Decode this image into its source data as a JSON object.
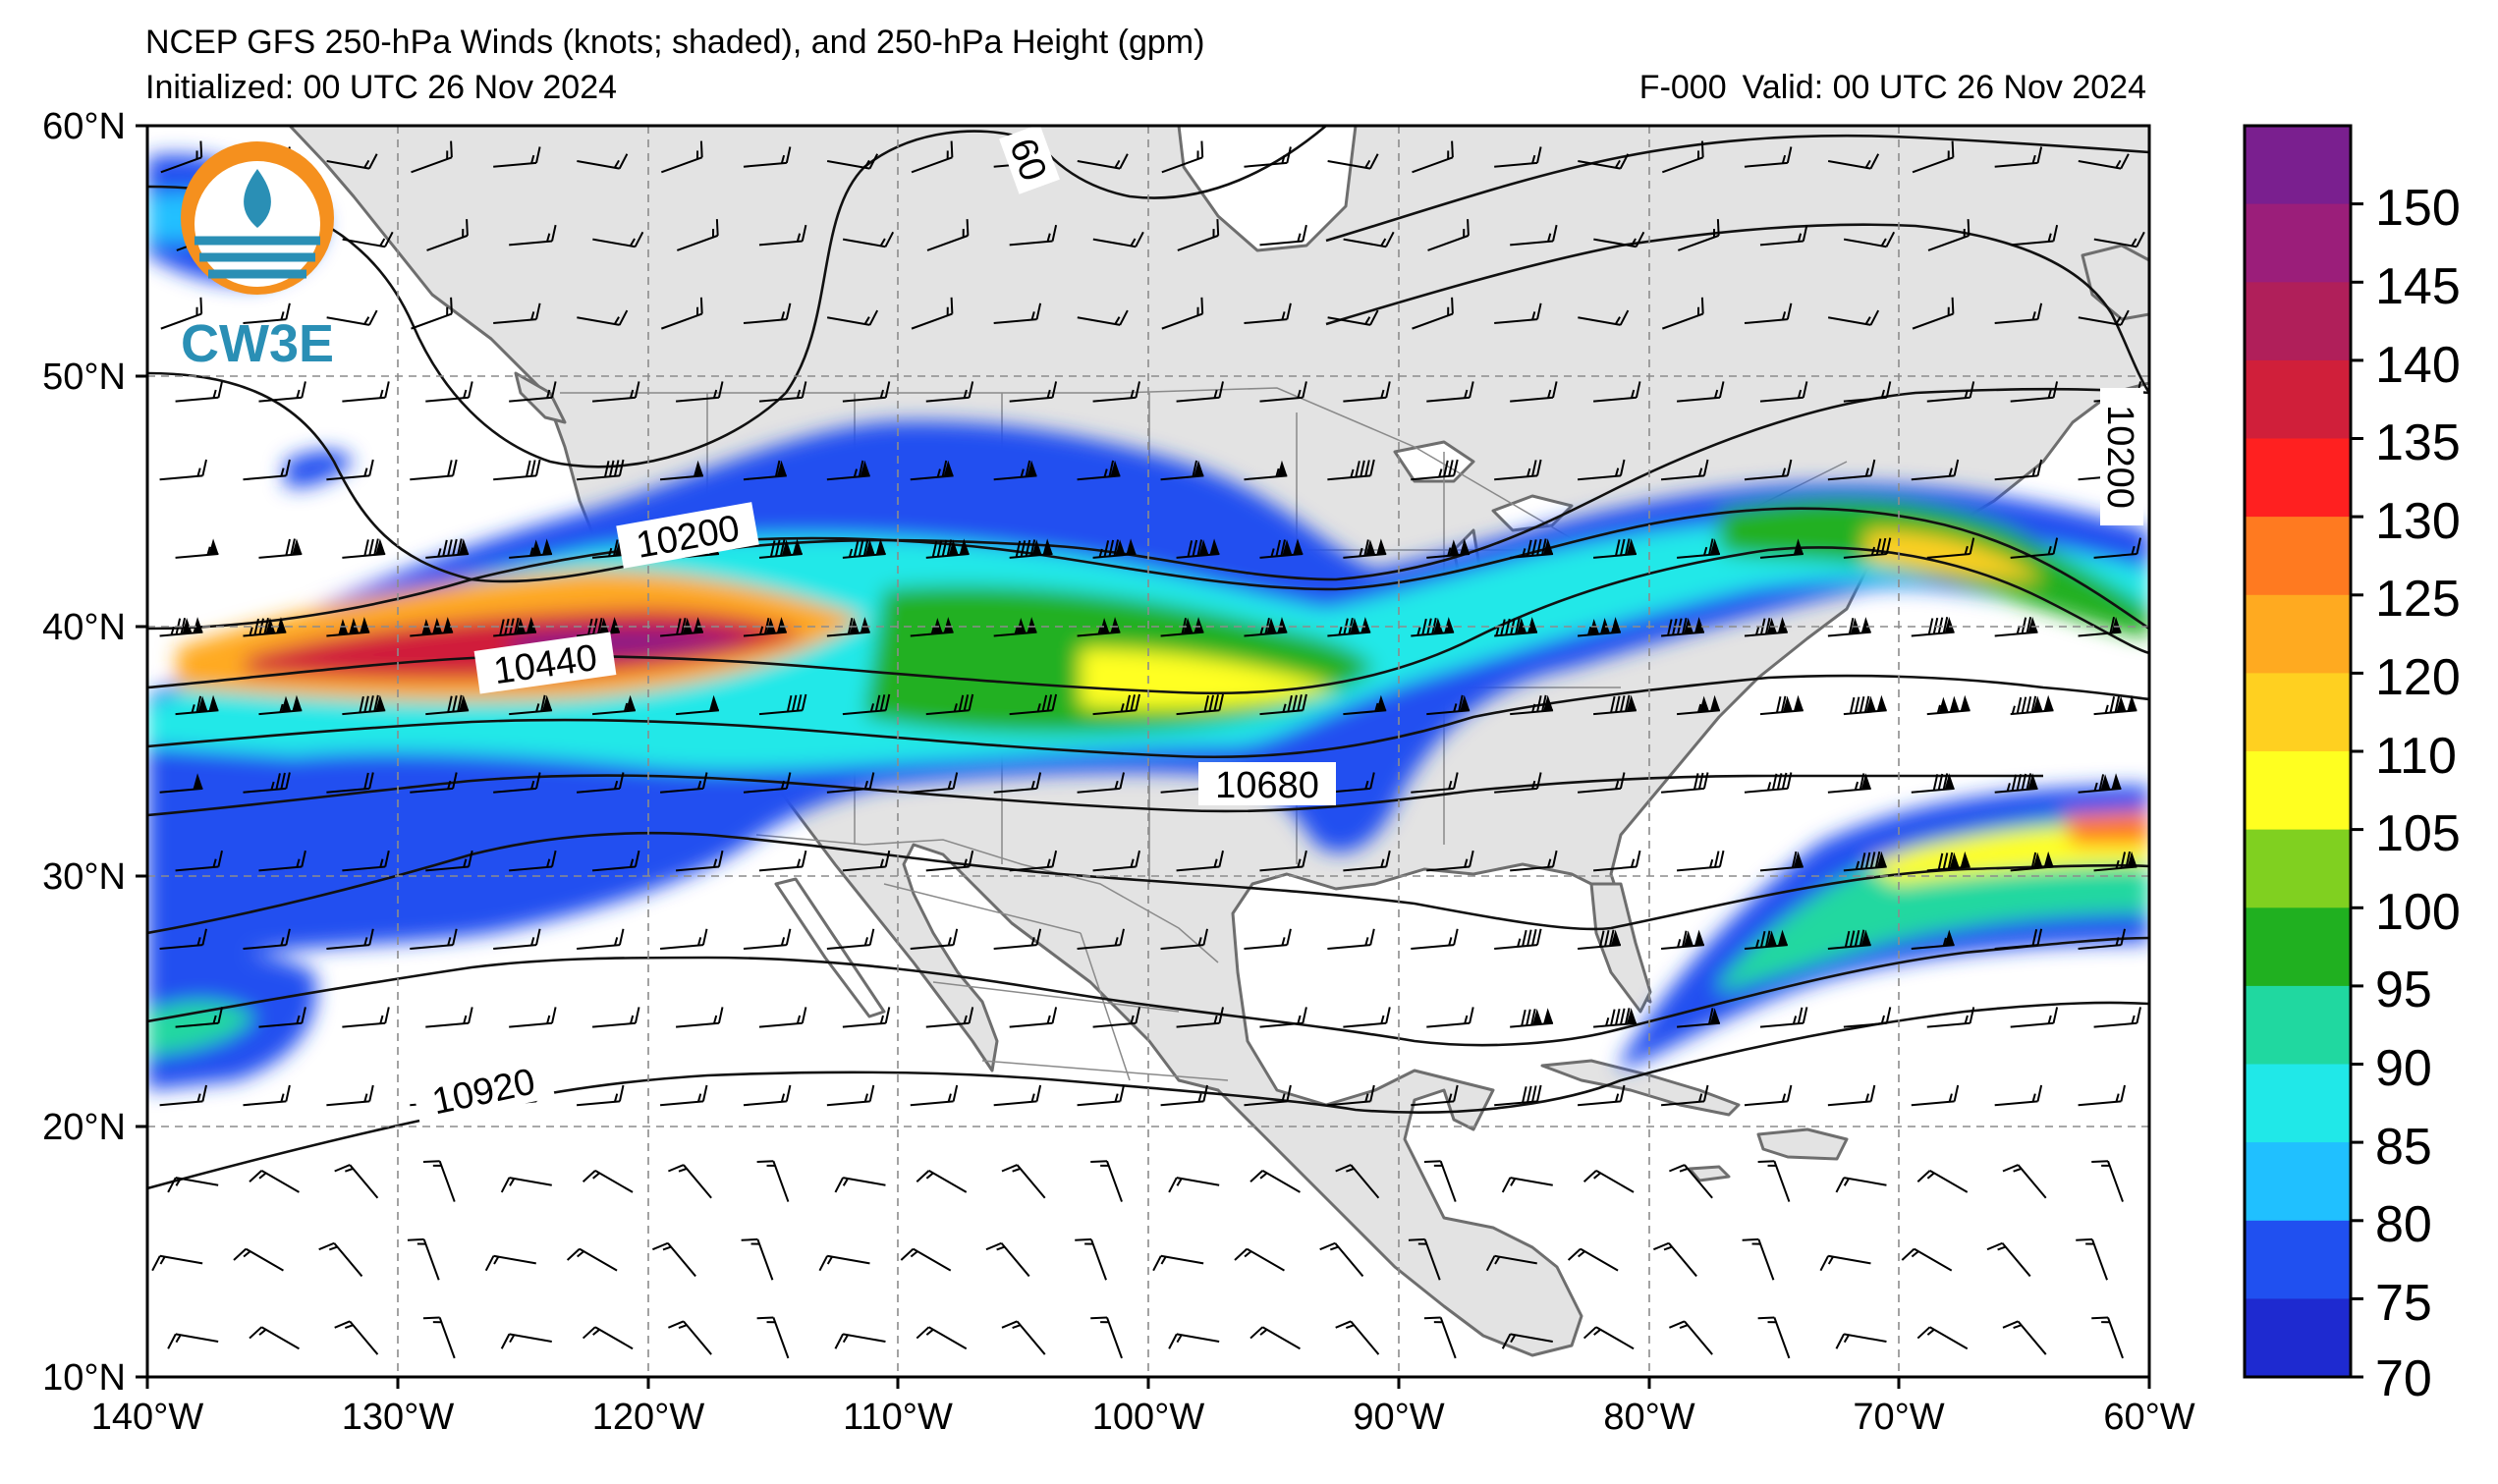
{
  "header": {
    "title": "NCEP GFS 250-hPa Winds (knots; shaded), and 250-hPa Height (gpm)",
    "initialized": "Initialized: 00 UTC 26 Nov 2024",
    "forecast_hour": "F-000",
    "valid": "Valid: 00 UTC 26 Nov 2024"
  },
  "logo": {
    "text": "CW3E"
  },
  "map": {
    "lat_labels": [
      "60°N",
      "50°N",
      "40°N",
      "30°N",
      "20°N",
      "10°N"
    ],
    "lon_labels": [
      "140°W",
      "130°W",
      "120°W",
      "110°W",
      "100°W",
      "90°W",
      "80°W",
      "70°W",
      "60°W"
    ],
    "contour_labels": [
      "10200",
      "10440",
      "10680",
      "10920",
      "10200",
      "60"
    ],
    "colors": {
      "land": "#e3e3e3",
      "ocean": "#ffffff",
      "coast": "#6e6e6e",
      "grid": "#8c8c8c"
    }
  },
  "colorbar": {
    "labels": [
      "150",
      "145",
      "140",
      "135",
      "130",
      "125",
      "120",
      "110",
      "105",
      "100",
      "95",
      "90",
      "85",
      "80",
      "75",
      "70"
    ],
    "colors": [
      "#7a1f8f",
      "#9b1e7a",
      "#b01f5a",
      "#d01f3a",
      "#ff2020",
      "#ff7a20",
      "#ffaa20",
      "#ffd020",
      "#ffff20",
      "#80d020",
      "#20b020",
      "#20d8a0",
      "#20e8e8",
      "#20c0ff",
      "#2050f0",
      "#1e2ad0"
    ]
  }
}
